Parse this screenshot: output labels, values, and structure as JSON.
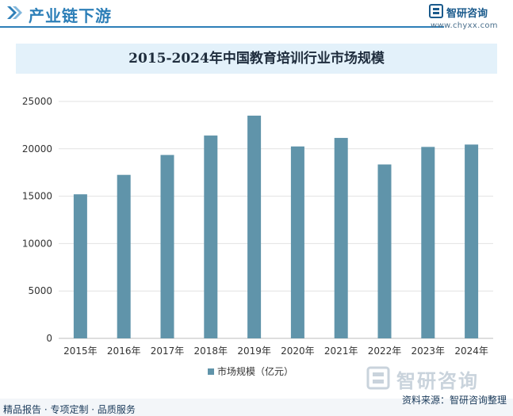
{
  "header": {
    "section_title": "产业链下游",
    "brand_name": "智研咨询",
    "brand_url": "www.chyxx.com"
  },
  "chart_data": {
    "type": "bar",
    "title": "2015-2024年中国教育培训行业市场规模",
    "categories": [
      "2015年",
      "2016年",
      "2017年",
      "2018年",
      "2019年",
      "2020年",
      "2021年",
      "2022年",
      "2023年",
      "2024年"
    ],
    "series": [
      {
        "name": "市场规模（亿元）",
        "values": [
          15200,
          17250,
          19350,
          21400,
          23500,
          20250,
          21150,
          18350,
          20200,
          20450
        ]
      }
    ],
    "ylim": [
      0,
      25000
    ],
    "yticks": [
      0,
      5000,
      10000,
      15000,
      20000,
      25000
    ],
    "grid": true,
    "legend_position": "bottom",
    "bar_color": "#6094aa"
  },
  "footer": {
    "left_text": "精品报告 · 专项定制 · 品质服务",
    "source_text": "资料来源：智研咨询整理",
    "watermark_text": "智研咨询"
  },
  "icons": {
    "header_mark": "double-chevron-icon",
    "brand_logo": "zhiyan-logo-icon"
  }
}
